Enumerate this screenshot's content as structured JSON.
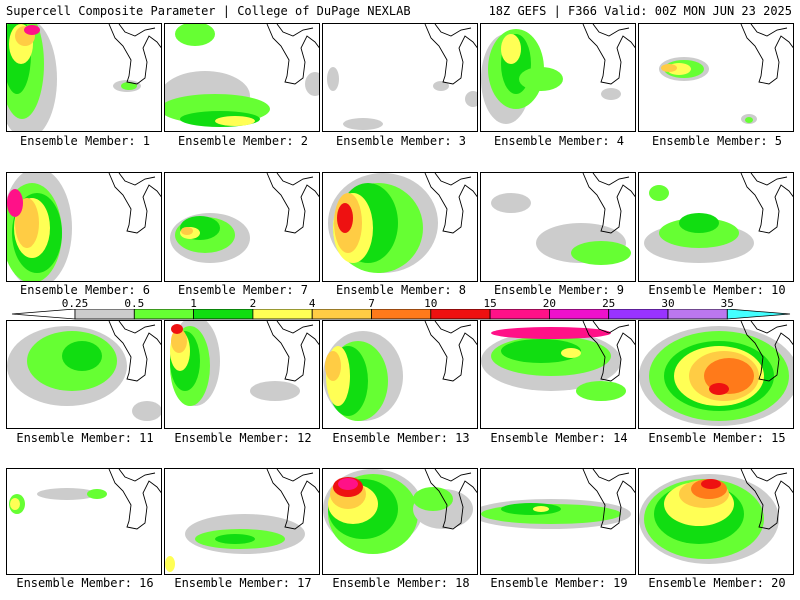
{
  "header": {
    "title_left": "Supercell Composite Parameter | College of DuPage NEXLAB",
    "title_right": "18Z GEFS | F366 Valid: 00Z MON JUN 23 2025"
  },
  "colorbar": {
    "labels": [
      "0.25",
      "0.5",
      "1",
      "2",
      "4",
      "7",
      "10",
      "15",
      "20",
      "25",
      "30",
      "35"
    ],
    "colors": [
      "#cccccc",
      "#66ff33",
      "#11dd11",
      "#ffff55",
      "#ffcc44",
      "#ff7a1a",
      "#ee1111",
      "#ff1188",
      "#ee11cc",
      "#9933ff",
      "#bb77ee",
      "#44ffff"
    ]
  },
  "members": [
    {
      "label": "Ensemble Member: 1"
    },
    {
      "label": "Ensemble Member: 2"
    },
    {
      "label": "Ensemble Member: 3"
    },
    {
      "label": "Ensemble Member: 4"
    },
    {
      "label": "Ensemble Member: 5"
    },
    {
      "label": "Ensemble Member: 6"
    },
    {
      "label": "Ensemble Member: 7"
    },
    {
      "label": "Ensemble Member: 8"
    },
    {
      "label": "Ensemble Member: 9"
    },
    {
      "label": "Ensemble Member: 10"
    },
    {
      "label": "Ensemble Member: 11"
    },
    {
      "label": "Ensemble Member: 12"
    },
    {
      "label": "Ensemble Member: 13"
    },
    {
      "label": "Ensemble Member: 14"
    },
    {
      "label": "Ensemble Member: 15"
    },
    {
      "label": "Ensemble Member: 16"
    },
    {
      "label": "Ensemble Member: 17"
    },
    {
      "label": "Ensemble Member: 18"
    },
    {
      "label": "Ensemble Member: 19"
    },
    {
      "label": "Ensemble Member: 20"
    }
  ]
}
